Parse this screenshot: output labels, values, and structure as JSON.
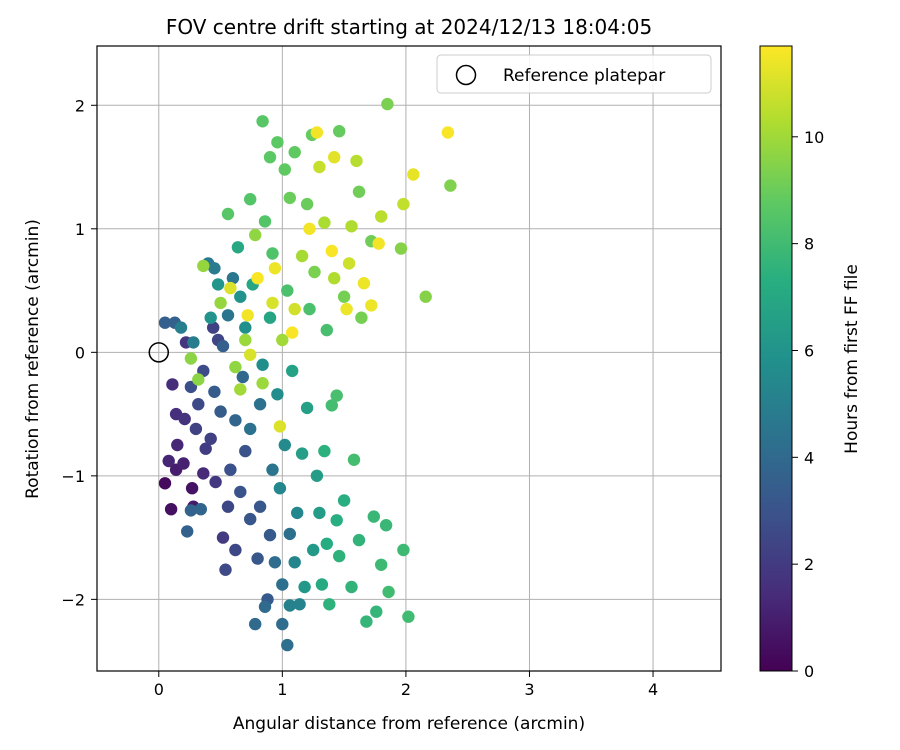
{
  "chart_data": {
    "type": "scatter",
    "title": "FOV centre drift starting at 2024/12/13 18:04:05",
    "xlabel": "Angular distance from reference (arcmin)",
    "ylabel": "Rotation from reference (arcmin)",
    "xlim": [
      -0.5,
      4.55
    ],
    "ylim": [
      -2.58,
      2.48
    ],
    "xticks": [
      0,
      1,
      2,
      3,
      4
    ],
    "xtick_labels": [
      "0",
      "1",
      "2",
      "3",
      "4"
    ],
    "yticks": [
      -2,
      -1,
      0,
      1,
      2
    ],
    "ytick_labels": [
      "−2",
      "−1",
      "0",
      "1",
      "2"
    ],
    "grid": true,
    "legend": {
      "placement": "top-right",
      "entries": [
        "Reference platepar"
      ]
    },
    "reference_point": {
      "x": 0,
      "y": 0,
      "label": "Reference platepar"
    },
    "colorbar": {
      "label": "Hours from first FF file",
      "min": 0,
      "max": 11.7,
      "ticks": [
        0,
        2,
        4,
        6,
        8,
        10
      ],
      "tick_labels": [
        "0",
        "2",
        "4",
        "6",
        "8",
        "10"
      ],
      "colormap": "viridis"
    },
    "series": [
      {
        "points": [
          {
            "x": 0.05,
            "y": -1.06,
            "h": 0.3
          },
          {
            "x": 0.1,
            "y": -1.27,
            "h": 0.5
          },
          {
            "x": 0.27,
            "y": -1.1,
            "h": 0.6
          },
          {
            "x": 0.28,
            "y": -1.25,
            "h": 0.8
          },
          {
            "x": 0.14,
            "y": -0.95,
            "h": 0.9
          },
          {
            "x": 0.2,
            "y": -0.9,
            "h": 1.1
          },
          {
            "x": 0.15,
            "y": -0.75,
            "h": 1.3
          },
          {
            "x": 0.08,
            "y": -0.88,
            "h": 1.2
          },
          {
            "x": 0.36,
            "y": -0.98,
            "h": 1.4
          },
          {
            "x": 0.11,
            "y": -0.26,
            "h": 1.5
          },
          {
            "x": 0.14,
            "y": -0.5,
            "h": 1.6
          },
          {
            "x": 0.21,
            "y": -0.54,
            "h": 1.7
          },
          {
            "x": 0.22,
            "y": 0.08,
            "h": 1.8
          },
          {
            "x": 0.46,
            "y": -1.05,
            "h": 1.9
          },
          {
            "x": 0.52,
            "y": -1.5,
            "h": 2.0
          },
          {
            "x": 0.38,
            "y": -0.78,
            "h": 2.1
          },
          {
            "x": 0.42,
            "y": -0.7,
            "h": 2.2
          },
          {
            "x": 0.3,
            "y": -0.62,
            "h": 2.3
          },
          {
            "x": 0.44,
            "y": 0.2,
            "h": 2.3
          },
          {
            "x": 0.48,
            "y": 0.1,
            "h": 2.4
          },
          {
            "x": 0.56,
            "y": -1.25,
            "h": 2.5
          },
          {
            "x": 0.62,
            "y": -1.6,
            "h": 2.5
          },
          {
            "x": 0.54,
            "y": -1.76,
            "h": 2.6
          },
          {
            "x": 0.32,
            "y": -0.42,
            "h": 2.6
          },
          {
            "x": 0.36,
            "y": -0.15,
            "h": 2.7
          },
          {
            "x": 0.26,
            "y": -0.28,
            "h": 2.8
          },
          {
            "x": 0.58,
            "y": -0.95,
            "h": 2.9
          },
          {
            "x": 0.66,
            "y": -1.13,
            "h": 3.0
          },
          {
            "x": 0.7,
            "y": -0.8,
            "h": 3.0
          },
          {
            "x": 0.74,
            "y": -1.35,
            "h": 3.1
          },
          {
            "x": 0.8,
            "y": -1.67,
            "h": 3.2
          },
          {
            "x": 0.82,
            "y": -1.25,
            "h": 3.2
          },
          {
            "x": 0.88,
            "y": -2.0,
            "h": 3.3
          },
          {
            "x": 0.9,
            "y": -1.48,
            "h": 3.3
          },
          {
            "x": 0.45,
            "y": -0.32,
            "h": 3.4
          },
          {
            "x": 0.5,
            "y": -0.48,
            "h": 3.4
          },
          {
            "x": 0.52,
            "y": 0.05,
            "h": 3.5
          },
          {
            "x": 0.05,
            "y": 0.24,
            "h": 3.5
          },
          {
            "x": 0.13,
            "y": 0.24,
            "h": 3.6
          },
          {
            "x": 0.23,
            "y": -1.45,
            "h": 3.6
          },
          {
            "x": 0.26,
            "y": -1.28,
            "h": 3.7
          },
          {
            "x": 0.34,
            "y": -1.27,
            "h": 3.8
          },
          {
            "x": 0.62,
            "y": -0.55,
            "h": 3.8
          },
          {
            "x": 0.68,
            "y": -0.2,
            "h": 3.9
          },
          {
            "x": 0.78,
            "y": -2.2,
            "h": 4.0
          },
          {
            "x": 0.86,
            "y": -2.06,
            "h": 4.0
          },
          {
            "x": 0.94,
            "y": -1.7,
            "h": 4.1
          },
          {
            "x": 1.0,
            "y": -2.2,
            "h": 4.1
          },
          {
            "x": 1.04,
            "y": -2.37,
            "h": 4.2
          },
          {
            "x": 1.0,
            "y": -1.88,
            "h": 4.3
          },
          {
            "x": 1.06,
            "y": -1.47,
            "h": 4.3
          },
          {
            "x": 0.74,
            "y": -0.62,
            "h": 4.4
          },
          {
            "x": 0.82,
            "y": -0.42,
            "h": 4.4
          },
          {
            "x": 0.92,
            "y": -0.95,
            "h": 4.5
          },
          {
            "x": 0.56,
            "y": 0.3,
            "h": 4.5
          },
          {
            "x": 0.6,
            "y": 0.6,
            "h": 4.6
          },
          {
            "x": 0.4,
            "y": 0.72,
            "h": 4.7
          },
          {
            "x": 0.45,
            "y": 0.68,
            "h": 4.8
          },
          {
            "x": 0.28,
            "y": 0.08,
            "h": 4.9
          },
          {
            "x": 0.18,
            "y": 0.2,
            "h": 5.0
          },
          {
            "x": 1.06,
            "y": -2.05,
            "h": 5.1
          },
          {
            "x": 1.14,
            "y": -2.04,
            "h": 5.2
          },
          {
            "x": 1.1,
            "y": -1.7,
            "h": 5.3
          },
          {
            "x": 1.12,
            "y": -1.3,
            "h": 5.4
          },
          {
            "x": 0.98,
            "y": -1.1,
            "h": 5.4
          },
          {
            "x": 1.02,
            "y": -0.75,
            "h": 5.5
          },
          {
            "x": 0.96,
            "y": -0.34,
            "h": 5.6
          },
          {
            "x": 0.84,
            "y": -0.1,
            "h": 5.7
          },
          {
            "x": 0.7,
            "y": 0.2,
            "h": 5.8
          },
          {
            "x": 0.66,
            "y": 0.45,
            "h": 5.9
          },
          {
            "x": 0.42,
            "y": 0.28,
            "h": 6.0
          },
          {
            "x": 0.48,
            "y": 0.55,
            "h": 6.1
          },
          {
            "x": 1.18,
            "y": -1.9,
            "h": 6.2
          },
          {
            "x": 1.25,
            "y": -1.6,
            "h": 6.3
          },
          {
            "x": 1.3,
            "y": -1.3,
            "h": 6.4
          },
          {
            "x": 1.28,
            "y": -1.0,
            "h": 6.4
          },
          {
            "x": 1.16,
            "y": -0.82,
            "h": 6.5
          },
          {
            "x": 1.2,
            "y": -0.45,
            "h": 6.6
          },
          {
            "x": 1.08,
            "y": -0.15,
            "h": 6.7
          },
          {
            "x": 0.9,
            "y": 0.28,
            "h": 6.8
          },
          {
            "x": 0.76,
            "y": 0.55,
            "h": 6.9
          },
          {
            "x": 0.64,
            "y": 0.85,
            "h": 7.0
          },
          {
            "x": 1.32,
            "y": -1.88,
            "h": 7.1
          },
          {
            "x": 1.36,
            "y": -1.55,
            "h": 7.2
          },
          {
            "x": 1.44,
            "y": -1.36,
            "h": 7.3
          },
          {
            "x": 1.5,
            "y": -1.2,
            "h": 7.3
          },
          {
            "x": 1.34,
            "y": -0.8,
            "h": 7.4
          },
          {
            "x": 1.38,
            "y": -2.04,
            "h": 7.5
          },
          {
            "x": 1.46,
            "y": -1.65,
            "h": 7.5
          },
          {
            "x": 1.56,
            "y": -1.9,
            "h": 7.6
          },
          {
            "x": 1.62,
            "y": -1.52,
            "h": 7.6
          },
          {
            "x": 1.68,
            "y": -2.18,
            "h": 7.7
          },
          {
            "x": 1.76,
            "y": -2.1,
            "h": 7.7
          },
          {
            "x": 1.74,
            "y": -1.33,
            "h": 7.8
          },
          {
            "x": 1.84,
            "y": -1.4,
            "h": 7.8
          },
          {
            "x": 1.8,
            "y": -1.72,
            "h": 7.9
          },
          {
            "x": 1.98,
            "y": -1.6,
            "h": 7.9
          },
          {
            "x": 2.02,
            "y": -2.14,
            "h": 8.0
          },
          {
            "x": 1.86,
            "y": -1.94,
            "h": 8.0
          },
          {
            "x": 1.58,
            "y": -0.87,
            "h": 8.1
          },
          {
            "x": 1.4,
            "y": -0.43,
            "h": 8.1
          },
          {
            "x": 1.44,
            "y": -0.35,
            "h": 8.2
          },
          {
            "x": 1.36,
            "y": 0.18,
            "h": 8.2
          },
          {
            "x": 1.22,
            "y": 0.35,
            "h": 8.3
          },
          {
            "x": 1.04,
            "y": 0.5,
            "h": 8.3
          },
          {
            "x": 0.92,
            "y": 0.8,
            "h": 8.4
          },
          {
            "x": 0.86,
            "y": 1.06,
            "h": 8.5
          },
          {
            "x": 0.74,
            "y": 1.24,
            "h": 8.5
          },
          {
            "x": 0.56,
            "y": 1.12,
            "h": 8.6
          },
          {
            "x": 0.84,
            "y": 1.87,
            "h": 8.6
          },
          {
            "x": 0.96,
            "y": 1.7,
            "h": 8.7
          },
          {
            "x": 0.9,
            "y": 1.58,
            "h": 8.7
          },
          {
            "x": 1.02,
            "y": 1.48,
            "h": 8.8
          },
          {
            "x": 1.1,
            "y": 1.62,
            "h": 8.8
          },
          {
            "x": 1.24,
            "y": 1.76,
            "h": 8.9
          },
          {
            "x": 1.46,
            "y": 1.79,
            "h": 8.9
          },
          {
            "x": 1.2,
            "y": 1.2,
            "h": 9.0
          },
          {
            "x": 1.06,
            "y": 1.25,
            "h": 9.0
          },
          {
            "x": 1.62,
            "y": 1.3,
            "h": 9.1
          },
          {
            "x": 1.72,
            "y": 0.9,
            "h": 9.1
          },
          {
            "x": 1.5,
            "y": 0.45,
            "h": 9.2
          },
          {
            "x": 1.64,
            "y": 0.28,
            "h": 9.2
          },
          {
            "x": 1.26,
            "y": 0.65,
            "h": 9.3
          },
          {
            "x": 1.85,
            "y": 2.01,
            "h": 9.3
          },
          {
            "x": 2.36,
            "y": 1.35,
            "h": 9.4
          },
          {
            "x": 2.16,
            "y": 0.45,
            "h": 9.5
          },
          {
            "x": 1.96,
            "y": 0.84,
            "h": 9.5
          },
          {
            "x": 0.32,
            "y": -0.22,
            "h": 9.6
          },
          {
            "x": 0.26,
            "y": -0.05,
            "h": 9.6
          },
          {
            "x": 0.62,
            "y": -0.12,
            "h": 9.7
          },
          {
            "x": 0.78,
            "y": 0.95,
            "h": 9.7
          },
          {
            "x": 0.36,
            "y": 0.7,
            "h": 9.8
          },
          {
            "x": 0.5,
            "y": 0.4,
            "h": 9.8
          },
          {
            "x": 0.7,
            "y": 0.1,
            "h": 9.9
          },
          {
            "x": 0.84,
            "y": -0.25,
            "h": 9.9
          },
          {
            "x": 0.66,
            "y": -0.3,
            "h": 10.0
          },
          {
            "x": 1.0,
            "y": 0.1,
            "h": 10.0
          },
          {
            "x": 1.16,
            "y": 0.78,
            "h": 10.1
          },
          {
            "x": 1.34,
            "y": 1.05,
            "h": 10.2
          },
          {
            "x": 1.56,
            "y": 1.02,
            "h": 10.3
          },
          {
            "x": 1.42,
            "y": 0.6,
            "h": 10.3
          },
          {
            "x": 1.6,
            "y": 1.55,
            "h": 10.4
          },
          {
            "x": 1.8,
            "y": 1.1,
            "h": 10.5
          },
          {
            "x": 1.98,
            "y": 1.2,
            "h": 10.6
          },
          {
            "x": 1.3,
            "y": 1.5,
            "h": 10.7
          },
          {
            "x": 1.54,
            "y": 0.72,
            "h": 10.8
          },
          {
            "x": 1.1,
            "y": 0.35,
            "h": 10.9
          },
          {
            "x": 0.92,
            "y": 0.4,
            "h": 11.0
          },
          {
            "x": 0.74,
            "y": -0.02,
            "h": 11.0
          },
          {
            "x": 0.58,
            "y": 0.52,
            "h": 11.1
          },
          {
            "x": 0.98,
            "y": -0.6,
            "h": 11.1
          },
          {
            "x": 1.42,
            "y": 1.58,
            "h": 11.2
          },
          {
            "x": 2.06,
            "y": 1.44,
            "h": 11.3
          },
          {
            "x": 2.34,
            "y": 1.78,
            "h": 11.6
          },
          {
            "x": 1.28,
            "y": 1.78,
            "h": 11.5
          },
          {
            "x": 1.72,
            "y": 0.38,
            "h": 11.4
          },
          {
            "x": 1.4,
            "y": 0.82,
            "h": 11.6
          },
          {
            "x": 1.22,
            "y": 1.0,
            "h": 11.5
          },
          {
            "x": 1.52,
            "y": 0.35,
            "h": 11.4
          },
          {
            "x": 0.8,
            "y": 0.6,
            "h": 11.6
          },
          {
            "x": 0.72,
            "y": 0.3,
            "h": 11.5
          },
          {
            "x": 1.66,
            "y": 0.56,
            "h": 11.4
          },
          {
            "x": 1.08,
            "y": 0.16,
            "h": 11.6
          },
          {
            "x": 1.78,
            "y": 0.88,
            "h": 11.5
          },
          {
            "x": 0.94,
            "y": 0.68,
            "h": 11.4
          }
        ]
      }
    ]
  }
}
